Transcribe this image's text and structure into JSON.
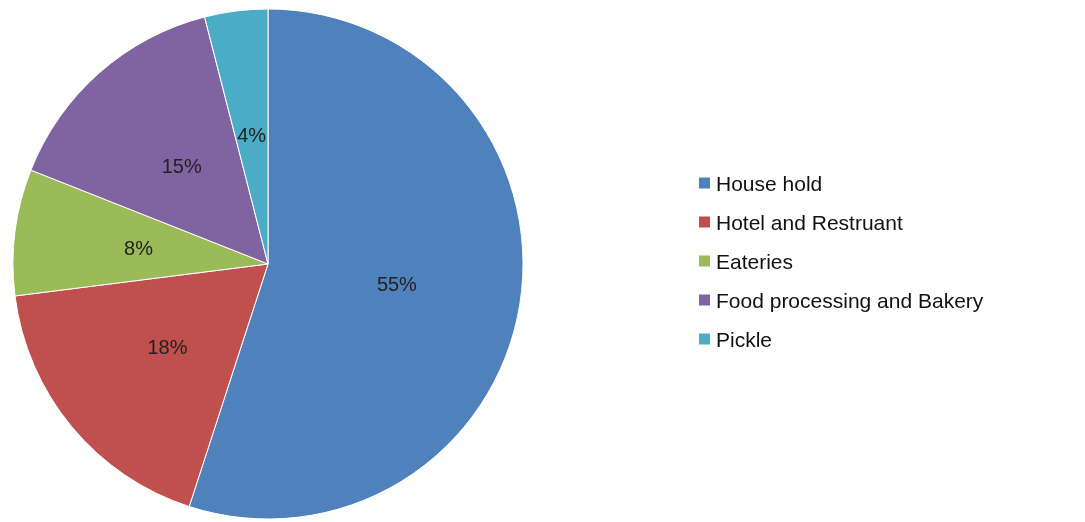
{
  "chart_data": {
    "type": "pie",
    "categories": [
      "House hold",
      "Hotel and Restruant",
      "Eateries",
      "Food processing and Bakery",
      "Pickle"
    ],
    "values": [
      55,
      18,
      8,
      15,
      4
    ],
    "value_labels": [
      "55%",
      "18%",
      "8%",
      "15%",
      "4%"
    ],
    "colors": [
      "#4f81bd",
      "#c0504d",
      "#9bbb59",
      "#8064a2",
      "#4bacc6"
    ],
    "legend": "right"
  }
}
